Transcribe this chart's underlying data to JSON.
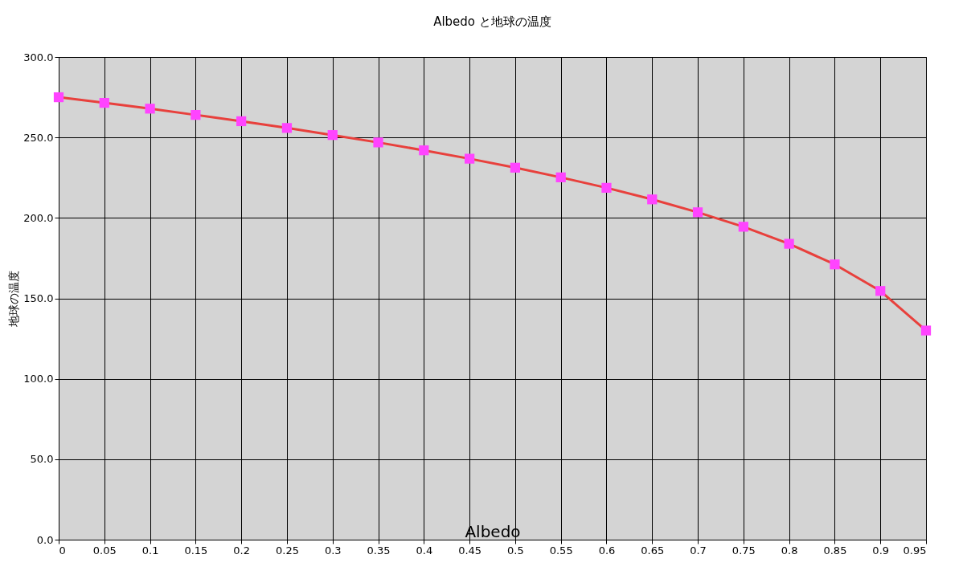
{
  "chart_data": {
    "type": "line",
    "title": "Albedo と地球の温度",
    "xlabel": "Albedo",
    "ylabel": "地球の温度",
    "x": [
      0,
      0.05,
      0.1,
      0.15,
      0.2,
      0.25,
      0.3,
      0.35,
      0.4,
      0.45,
      0.5,
      0.55,
      0.6,
      0.65,
      0.7,
      0.75,
      0.8,
      0.85,
      0.9,
      0.95
    ],
    "series": [
      {
        "color": "#e8403c",
        "values": [
          275.0,
          271.5,
          267.9,
          264.0,
          260.1,
          255.9,
          251.5,
          246.9,
          242.0,
          236.8,
          231.2,
          225.2,
          218.7,
          211.5,
          203.5,
          194.5,
          183.9,
          171.1,
          154.6,
          130.0
        ]
      }
    ],
    "xlim": [
      0,
      0.95
    ],
    "xticks": [
      0,
      0.05,
      0.1,
      0.15,
      0.2,
      0.25,
      0.3,
      0.35,
      0.4,
      0.45,
      0.5,
      0.55,
      0.6,
      0.65,
      0.7,
      0.75,
      0.8,
      0.85,
      0.9,
      0.95
    ],
    "ylim": [
      0,
      300
    ],
    "yticks": [
      {
        "value": 0,
        "label": "0.0"
      },
      {
        "value": 50,
        "label": "50.0"
      },
      {
        "value": 100,
        "label": "100.0"
      },
      {
        "value": 150,
        "label": "150.0"
      },
      {
        "value": 200,
        "label": "200.0"
      },
      {
        "value": 250,
        "label": "250.0"
      },
      {
        "value": 300,
        "label": "300.0"
      }
    ],
    "grid": true,
    "marker": "square",
    "line_style": "solid"
  }
}
